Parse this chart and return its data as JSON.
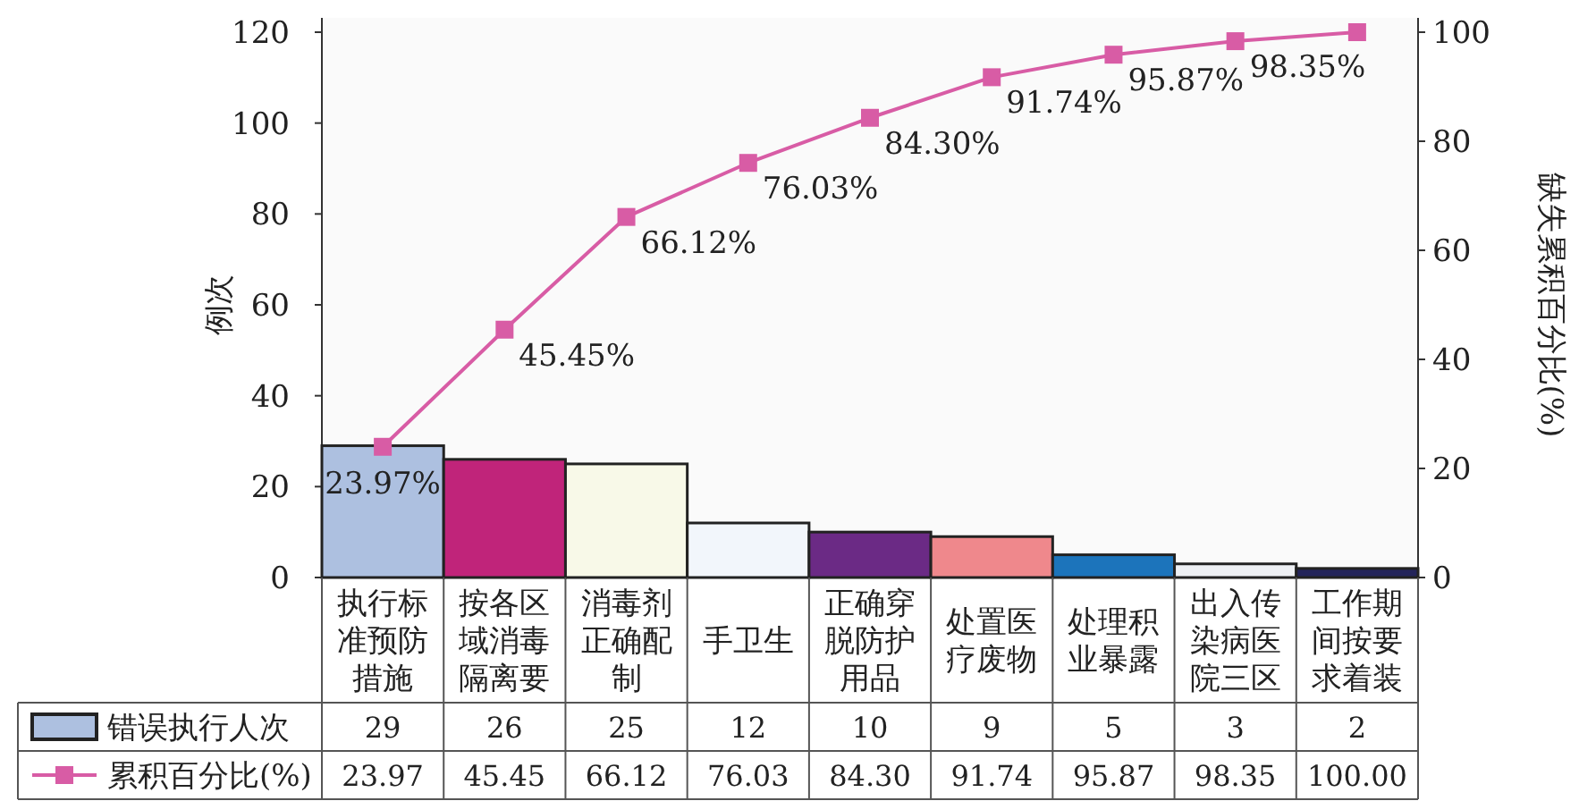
{
  "chart_data": {
    "type": "bar",
    "ylabel": "例次",
    "y2label": "缺失累积百分比(%)",
    "categories": [
      "执行标准预防措施",
      "按各区域消毒隔离要",
      "消毒剂正确配制",
      "手卫生",
      "正确穿脱防护用品",
      "处置医疗废物",
      "处理积业暴露",
      "出入传染病医院三区",
      "工作期间按要求着装"
    ],
    "series": [
      {
        "name": "错误执行人次",
        "colors": [
          "#adc0e0",
          "#c0247a",
          "#f8f9e8",
          "#f2f6fb",
          "#6b2a85",
          "#ef888c",
          "#1c74bb",
          "#eef0f4",
          "#23245a"
        ],
        "values": [
          29,
          26,
          25,
          12,
          10,
          9,
          5,
          3,
          2
        ]
      },
      {
        "name": "累积百分比(%)",
        "type": "line",
        "axis": "y2",
        "color": "#d85ca5",
        "marker": "square",
        "values": [
          23.97,
          45.45,
          66.12,
          76.03,
          84.3,
          91.74,
          95.87,
          98.35,
          100.0
        ],
        "value_labels": [
          "23.97",
          "45.45",
          "66.12",
          "76.03",
          "84.30",
          "91.74",
          "95.87",
          "98.35",
          "100.00"
        ]
      }
    ],
    "annotations": [
      "23.97%",
      "45.45%",
      "66.12%",
      "76.03%",
      "84.30%",
      "91.74%",
      "95.87%",
      "98.35%"
    ],
    "ylim": [
      0,
      120
    ],
    "yticks": [
      0,
      20,
      40,
      60,
      80,
      100,
      120
    ],
    "y2lim": [
      0,
      100
    ],
    "y2ticks": [
      0,
      20,
      40,
      60,
      80,
      100
    ],
    "data_labels": true,
    "legend": "bottom",
    "grid": false
  }
}
